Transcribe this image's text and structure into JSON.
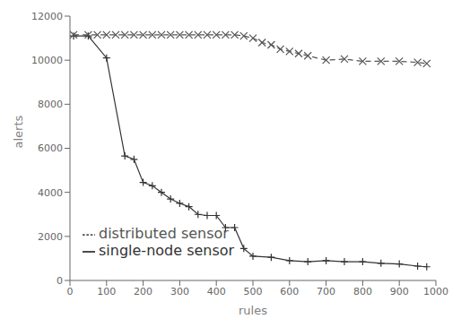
{
  "chart_data": {
    "type": "line",
    "xlabel": "rules",
    "ylabel": "alerts",
    "xlim": [
      0,
      1000
    ],
    "ylim": [
      0,
      12000
    ],
    "xticks": [
      0,
      100,
      200,
      300,
      400,
      500,
      600,
      700,
      800,
      900,
      1000
    ],
    "yticks": [
      0,
      2000,
      4000,
      6000,
      8000,
      10000,
      12000
    ],
    "grid": false,
    "legend": "lower left",
    "series": [
      {
        "name": "single-node sensor",
        "color": "#333333",
        "marker": "plus",
        "line_style": "solid",
        "x": [
          10,
          50,
          100,
          150,
          175,
          200,
          225,
          250,
          275,
          300,
          325,
          350,
          375,
          400,
          425,
          450,
          475,
          500,
          550,
          600,
          650,
          700,
          750,
          800,
          850,
          900,
          950,
          975
        ],
        "values": [
          11100,
          11100,
          10100,
          5650,
          5500,
          4450,
          4300,
          4000,
          3700,
          3500,
          3350,
          3000,
          2950,
          2950,
          2400,
          2400,
          1450,
          1100,
          1050,
          900,
          850,
          900,
          850,
          850,
          780,
          750,
          650,
          620
        ]
      },
      {
        "name": "distributed sensor",
        "color": "#555555",
        "marker": "cross",
        "line_style": "dashed",
        "x": [
          10,
          50,
          75,
          100,
          125,
          150,
          175,
          200,
          225,
          250,
          275,
          300,
          325,
          350,
          375,
          400,
          425,
          450,
          475,
          500,
          525,
          550,
          575,
          600,
          625,
          650,
          700,
          750,
          800,
          850,
          900,
          950,
          975
        ],
        "values": [
          11150,
          11150,
          11150,
          11150,
          11150,
          11150,
          11150,
          11150,
          11150,
          11150,
          11150,
          11150,
          11150,
          11150,
          11150,
          11150,
          11150,
          11150,
          11100,
          11000,
          10800,
          10700,
          10500,
          10400,
          10300,
          10200,
          10000,
          10050,
          9950,
          9950,
          9950,
          9900,
          9850
        ]
      }
    ]
  }
}
